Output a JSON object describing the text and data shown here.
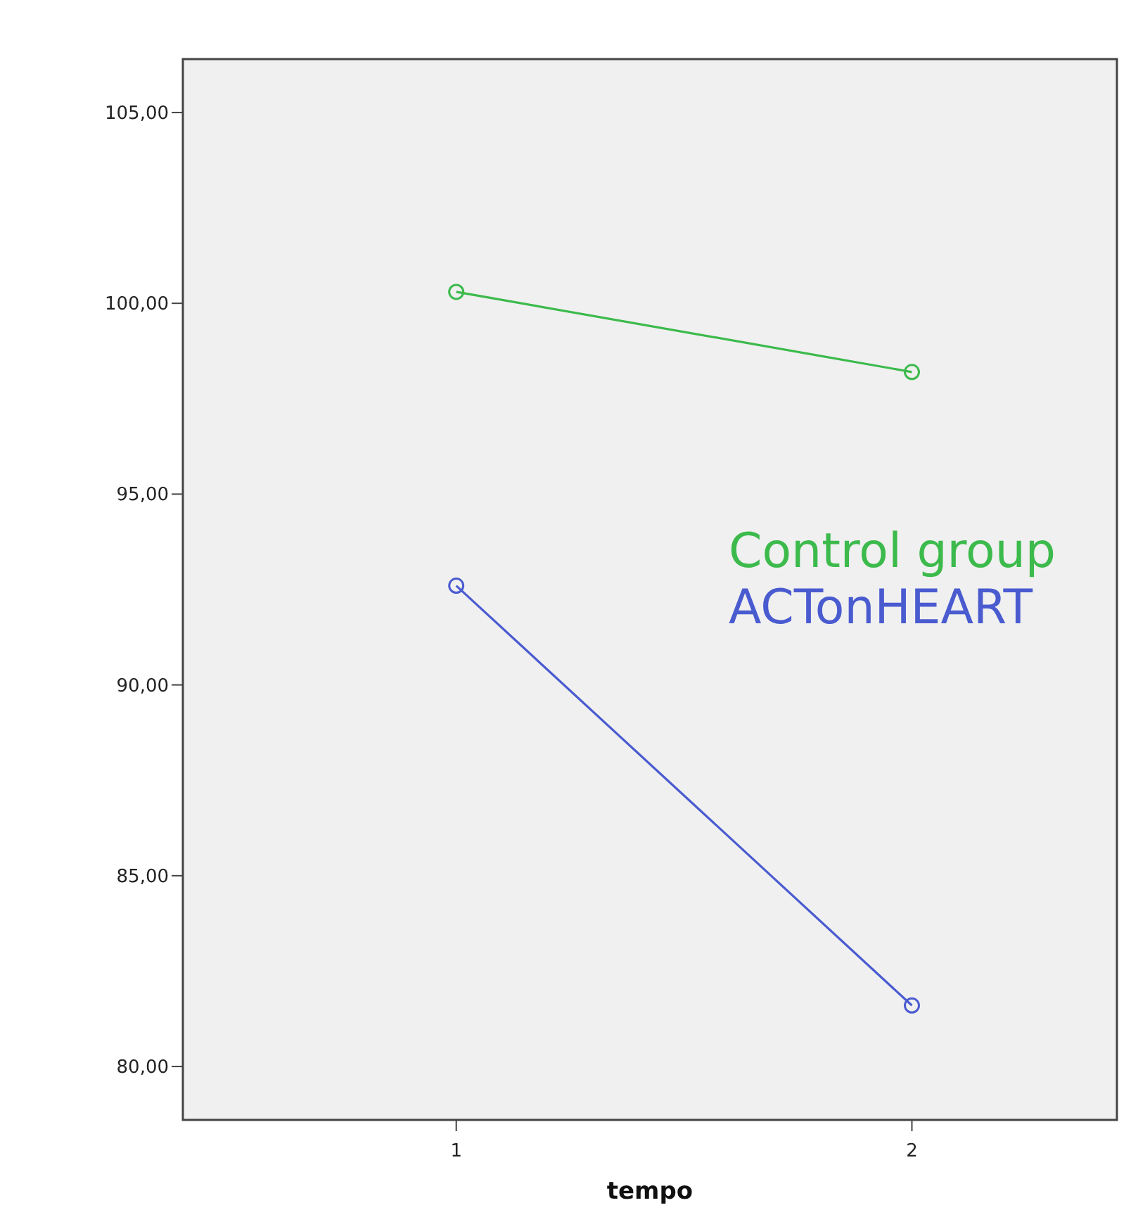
{
  "chart_data": {
    "type": "line",
    "xlabel": "tempo",
    "x": [
      1,
      2
    ],
    "xlim": [
      0.4,
      2.45
    ],
    "xticks": [
      1,
      2
    ],
    "ylim": [
      78.6,
      106.4
    ],
    "yticks": [
      {
        "value": 80,
        "label": "80,00"
      },
      {
        "value": 85,
        "label": "85,00"
      },
      {
        "value": 90,
        "label": "90,00"
      },
      {
        "value": 95,
        "label": "95,00"
      },
      {
        "value": 100,
        "label": "100,00"
      },
      {
        "value": 105,
        "label": "105,00"
      }
    ],
    "marker": "circle",
    "grid": false,
    "legend": "right",
    "series": [
      {
        "name": "Control group",
        "color": "#3cba4c",
        "values": [
          100.3,
          98.2
        ]
      },
      {
        "name": "ACTonHEART",
        "color": "#4a5bd0",
        "values": [
          92.6,
          81.6
        ]
      }
    ]
  }
}
